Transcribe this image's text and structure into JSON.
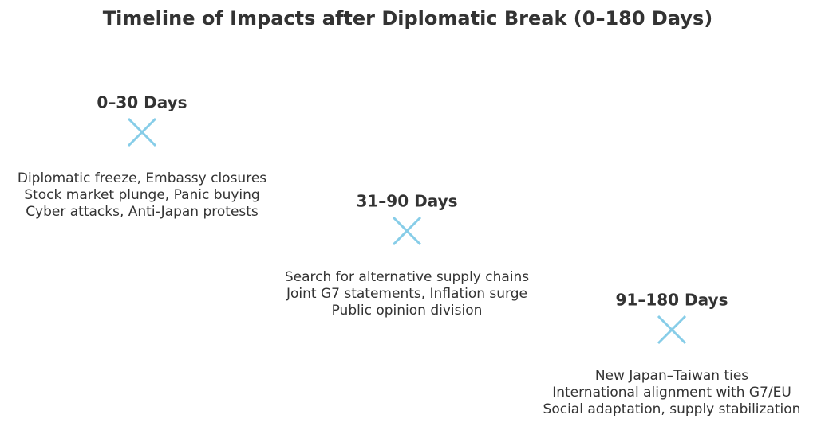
{
  "title": "Timeline of Impacts after Diplomatic Break (0–180 Days)",
  "stages": [
    {
      "label": "0–30 Days",
      "lines": [
        "Diplomatic freeze, Embassy closures",
        "Stock market plunge, Panic buying",
        "Cyber attacks, Anti-Japan protests"
      ]
    },
    {
      "label": "31–90 Days",
      "lines": [
        "Search for alternative supply chains",
        "Joint G7 statements, Inflation surge",
        "Public opinion division"
      ]
    },
    {
      "label": "91–180 Days",
      "lines": [
        "New Japan–Taiwan ties",
        "International alignment with G7/EU",
        "Social adaptation, supply stabilization"
      ]
    }
  ]
}
